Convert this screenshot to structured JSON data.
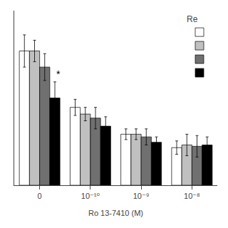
{
  "chart_data": {
    "type": "bar",
    "title": "Re",
    "xlabel": "Ro 13-7410 (M)",
    "categories": [
      "0",
      "10⁻¹⁰",
      "10⁻⁹",
      "10⁻⁸"
    ],
    "series": [
      {
        "color": "#ffffff",
        "values": [
          100,
          58,
          38,
          28
        ],
        "errors": [
          12,
          6,
          4,
          5
        ]
      },
      {
        "color": "#c0c0c0",
        "values": [
          100,
          53,
          38,
          30
        ],
        "errors": [
          8,
          5,
          4,
          8
        ]
      },
      {
        "color": "#707070",
        "values": [
          88,
          50,
          36,
          29
        ],
        "errors": [
          10,
          8,
          6,
          8
        ]
      },
      {
        "color": "#000000",
        "values": [
          65,
          44,
          32,
          30
        ],
        "errors": [
          12,
          7,
          4,
          6
        ],
        "annotations": [
          {
            "category": "0",
            "text": "*"
          }
        ]
      }
    ],
    "ylim": [
      0,
      130
    ],
    "yticks": [],
    "grid": false,
    "legend": "upper right",
    "tick_labels": "x"
  }
}
